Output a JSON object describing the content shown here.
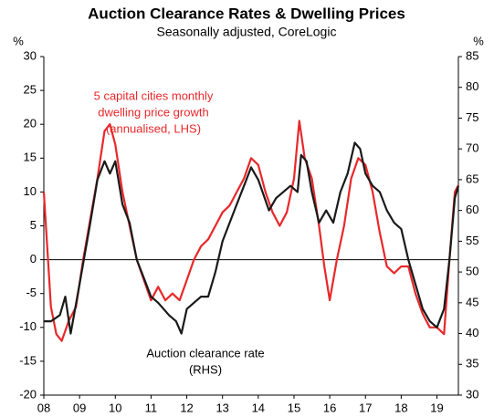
{
  "chart_data": {
    "type": "line",
    "title": "Auction Clearance Rates & Dwelling Prices",
    "subtitle": "Seasonally adjusted, CoreLogic",
    "y_unit": "%",
    "y2_unit": "%",
    "xlim": [
      2008,
      2019.6
    ],
    "xticks": [
      {
        "value": 2008,
        "label": "08"
      },
      {
        "value": 2009,
        "label": "09"
      },
      {
        "value": 2010,
        "label": "10"
      },
      {
        "value": 2011,
        "label": "11"
      },
      {
        "value": 2012,
        "label": "12"
      },
      {
        "value": 2013,
        "label": "13"
      },
      {
        "value": 2014,
        "label": "14"
      },
      {
        "value": 2015,
        "label": "15"
      },
      {
        "value": 2016,
        "label": "16"
      },
      {
        "value": 2017,
        "label": "17"
      },
      {
        "value": 2018,
        "label": "18"
      },
      {
        "value": 2019,
        "label": "19"
      }
    ],
    "ylim": [
      -20,
      30
    ],
    "yticks": [
      -20,
      -15,
      -10,
      -5,
      0,
      5,
      10,
      15,
      20,
      25,
      30
    ],
    "y2lim": [
      30,
      85
    ],
    "y2ticks": [
      30,
      35,
      40,
      45,
      50,
      55,
      60,
      65,
      70,
      75,
      80,
      85
    ],
    "annotations": [
      {
        "lines": [
          "5 capital cities monthly",
          "dwelling price growth",
          "(annualised, LHS)"
        ],
        "color": "#e8282b"
      },
      {
        "lines": [
          "Auction clearance rate",
          "(RHS)"
        ],
        "color": "#000000"
      }
    ],
    "series": [
      {
        "color": "#e8282b",
        "x": [
          2008.0,
          2008.2,
          2008.35,
          2008.5,
          2008.7,
          2008.9,
          2009.1,
          2009.3,
          2009.5,
          2009.7,
          2009.85,
          2010.0,
          2010.2,
          2010.4,
          2010.6,
          2010.8,
          2011.0,
          2011.2,
          2011.4,
          2011.6,
          2011.8,
          2012.0,
          2012.2,
          2012.4,
          2012.6,
          2012.8,
          2013.0,
          2013.2,
          2013.4,
          2013.6,
          2013.8,
          2014.0,
          2014.2,
          2014.4,
          2014.6,
          2014.8,
          2015.0,
          2015.15,
          2015.3,
          2015.5,
          2015.7,
          2015.85,
          2016.0,
          2016.2,
          2016.4,
          2016.6,
          2016.8,
          2017.0,
          2017.2,
          2017.4,
          2017.6,
          2017.8,
          2018.0,
          2018.2,
          2018.4,
          2018.6,
          2018.8,
          2019.0,
          2019.2,
          2019.35,
          2019.5,
          2019.6
        ],
        "values": [
          10,
          -7,
          -11,
          -12,
          -9,
          -7,
          0,
          6,
          12,
          19,
          20,
          17,
          10,
          5,
          0,
          -3,
          -6,
          -4,
          -6,
          -5,
          -6,
          -3,
          0,
          2,
          3,
          5,
          7,
          8,
          10,
          12,
          15,
          14,
          10,
          7,
          5,
          7,
          12,
          20.5,
          15,
          12,
          5,
          -1,
          -6,
          0,
          5,
          12,
          15,
          14,
          10,
          4,
          -1,
          -2,
          -1,
          -1,
          -5,
          -8,
          -10,
          -10,
          -11,
          0,
          10,
          11
        ]
      },
      {
        "color": "#1a1a1a",
        "axis": "y2",
        "x": [
          2008.0,
          2008.2,
          2008.45,
          2008.6,
          2008.75,
          2009.0,
          2009.3,
          2009.5,
          2009.7,
          2009.85,
          2010.0,
          2010.2,
          2010.4,
          2010.6,
          2010.8,
          2011.0,
          2011.2,
          2011.5,
          2011.7,
          2011.85,
          2012.0,
          2012.2,
          2012.4,
          2012.6,
          2012.8,
          2013.0,
          2013.2,
          2013.4,
          2013.6,
          2013.8,
          2014.0,
          2014.3,
          2014.5,
          2014.7,
          2014.9,
          2015.1,
          2015.2,
          2015.35,
          2015.5,
          2015.7,
          2015.9,
          2016.1,
          2016.3,
          2016.5,
          2016.7,
          2016.85,
          2017.0,
          2017.2,
          2017.4,
          2017.6,
          2017.8,
          2018.0,
          2018.2,
          2018.4,
          2018.6,
          2018.8,
          2019.0,
          2019.2,
          2019.35,
          2019.5,
          2019.6
        ],
        "values": [
          42,
          42,
          43,
          46,
          40,
          48,
          58,
          65,
          68,
          66,
          68,
          61,
          58,
          52,
          49,
          46,
          45,
          43,
          42,
          40,
          44,
          45,
          46,
          46,
          50,
          55,
          58,
          61,
          64,
          67,
          65,
          60,
          62,
          63,
          64,
          63,
          69,
          68,
          63,
          58,
          60,
          58,
          63,
          66,
          71,
          70,
          66,
          64,
          63,
          60,
          58,
          57,
          52,
          48,
          44,
          42,
          41,
          44,
          52,
          62,
          64
        ]
      }
    ]
  }
}
